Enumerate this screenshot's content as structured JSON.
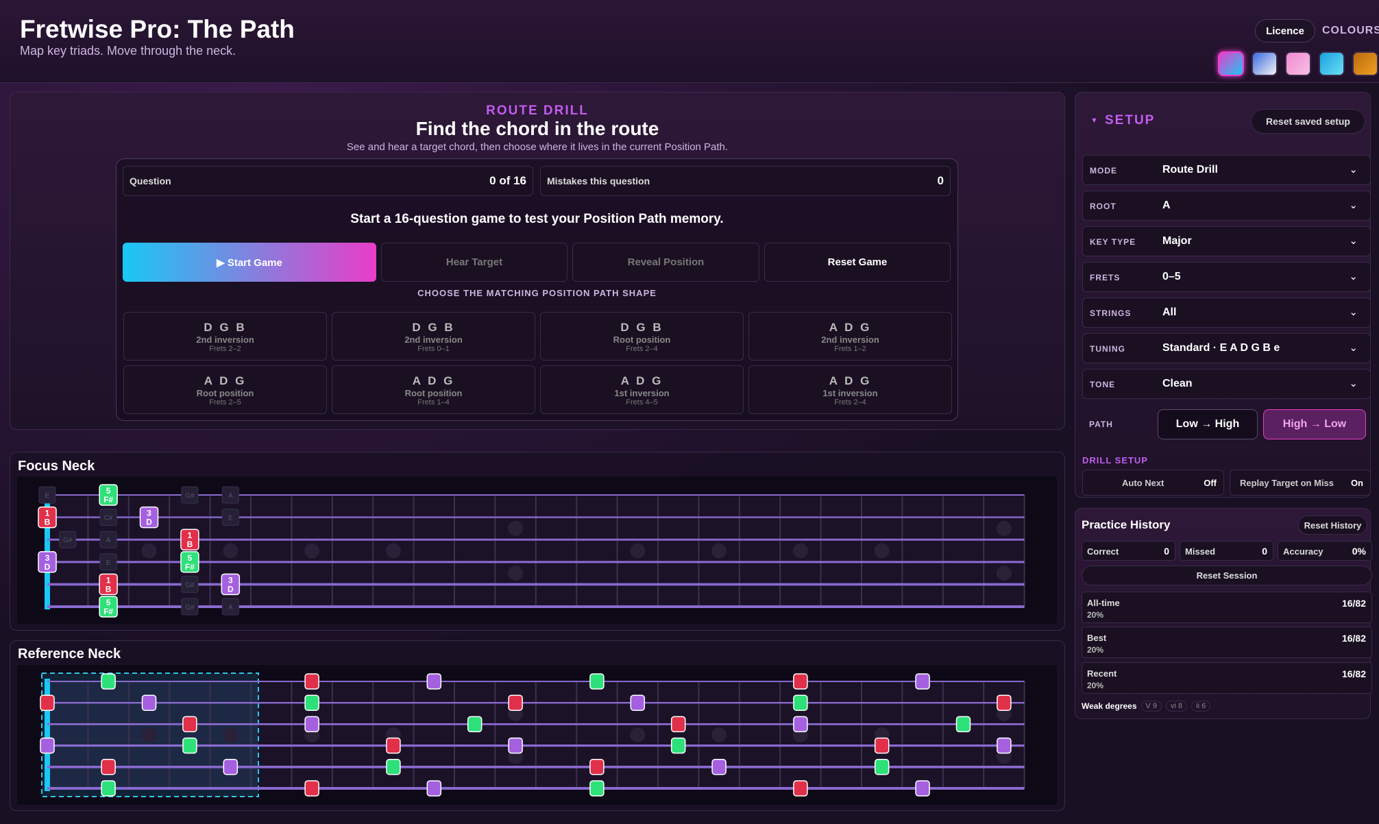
{
  "header": {
    "title": "Fretwise Pro: The Path",
    "subtitle": "Map key triads. Move through the neck.",
    "licence_label": "Licence",
    "colours_label": "COLOURS",
    "swatches": [
      {
        "name": "neon",
        "from": "#e93dc8",
        "to": "#19c8f5"
      },
      {
        "name": "electric",
        "from": "#3a6ae0",
        "to": "#f4f4f4"
      },
      {
        "name": "rose",
        "from": "#f08ad0",
        "to": "#f8c0e4"
      },
      {
        "name": "ice",
        "from": "#1aa0e0",
        "to": "#6ae0f4"
      },
      {
        "name": "amber",
        "from": "#b86a10",
        "to": "#f0a020"
      }
    ]
  },
  "drill": {
    "eyebrow": "ROUTE DRILL",
    "title": "Find the chord in the route",
    "description": "See and hear a target chord, then choose where it lives in the current Position Path.",
    "question_label": "Question",
    "question_value": "0 of 16",
    "mistakes_label": "Mistakes this question",
    "mistakes_value": "0",
    "prompt": "Start a 16-question game to test your Position Path memory.",
    "buttons": {
      "start": "▶ Start Game",
      "hear": "Hear Target",
      "reveal": "Reveal Position",
      "reset": "Reset Game"
    },
    "choose_label": "CHOOSE THE MATCHING POSITION PATH SHAPE",
    "options": [
      {
        "notes": "D G B",
        "inversion": "2nd inversion",
        "frets": "Frets 2–2"
      },
      {
        "notes": "D G B",
        "inversion": "2nd inversion",
        "frets": "Frets 0–1"
      },
      {
        "notes": "D G B",
        "inversion": "Root position",
        "frets": "Frets 2–4"
      },
      {
        "notes": "A D G",
        "inversion": "2nd inversion",
        "frets": "Frets 1–2"
      },
      {
        "notes": "A D G",
        "inversion": "Root position",
        "frets": "Frets 2–5"
      },
      {
        "notes": "A D G",
        "inversion": "Root position",
        "frets": "Frets 1–4"
      },
      {
        "notes": "A D G",
        "inversion": "1st inversion",
        "frets": "Frets 4–5"
      },
      {
        "notes": "A D G",
        "inversion": "1st inversion",
        "frets": "Frets 2–4"
      }
    ]
  },
  "focus_neck": {
    "title": "Focus Neck"
  },
  "reference_neck": {
    "title": "Reference Neck"
  },
  "setup": {
    "title": "SETUP",
    "reset_label": "Reset saved setup",
    "fields": [
      {
        "key": "MODE",
        "value": "Route Drill"
      },
      {
        "key": "ROOT",
        "value": "A"
      },
      {
        "key": "KEY TYPE",
        "value": "Major"
      },
      {
        "key": "FRETS",
        "value": "0–5"
      },
      {
        "key": "STRINGS",
        "value": "All"
      },
      {
        "key": "TUNING",
        "value": "Standard · E A D G B e"
      },
      {
        "key": "TONE",
        "value": "Clean"
      }
    ],
    "path_label": "PATH",
    "path_low_high": "Low → High",
    "path_high_low": "High → Low",
    "drill_setup_label": "DRILL SETUP",
    "auto_next_label": "Auto Next",
    "auto_next_state": "Off",
    "replay_label": "Replay Target on Miss",
    "replay_state": "On"
  },
  "history": {
    "title": "Practice History",
    "reset_label": "Reset History",
    "correct_label": "Correct",
    "correct_value": "0",
    "missed_label": "Missed",
    "missed_value": "0",
    "accuracy_label": "Accuracy",
    "accuracy_value": "0%",
    "reset_session_label": "Reset Session",
    "rows": [
      {
        "label": "All-time",
        "pct": "20%",
        "value": "16/82"
      },
      {
        "label": "Best",
        "pct": "20%",
        "value": "16/82"
      },
      {
        "label": "Recent",
        "pct": "20%",
        "value": "16/82"
      }
    ],
    "weak_label": "Weak degrees",
    "weak": [
      "V 9",
      "vi 8",
      "ii 6"
    ]
  },
  "colors": {
    "root": "#e0304a",
    "third": "#a560e0",
    "fifth": "#2ee07a",
    "accent": "#c35cf0",
    "string": "#8a6ad0"
  },
  "focus_markers": [
    {
      "string": 1,
      "fret": 2,
      "degree": "5",
      "note": "F#",
      "kind": "fifth"
    },
    {
      "string": 2,
      "fret": 0,
      "degree": "1",
      "note": "B",
      "kind": "root"
    },
    {
      "string": 2,
      "fret": 3,
      "degree": "3",
      "note": "D",
      "kind": "third"
    },
    {
      "string": 3,
      "fret": 4,
      "degree": "1",
      "note": "B",
      "kind": "root"
    },
    {
      "string": 4,
      "fret": 0,
      "degree": "3",
      "note": "D",
      "kind": "third"
    },
    {
      "string": 4,
      "fret": 4,
      "degree": "5",
      "note": "F#",
      "kind": "fifth"
    },
    {
      "string": 5,
      "fret": 2,
      "degree": "1",
      "note": "B",
      "kind": "root"
    },
    {
      "string": 5,
      "fret": 5,
      "degree": "3",
      "note": "D",
      "kind": "third"
    },
    {
      "string": 6,
      "fret": 2,
      "degree": "5",
      "note": "F#",
      "kind": "fifth"
    }
  ],
  "focus_ghosts": [
    {
      "string": 1,
      "fret": 0,
      "note": "E"
    },
    {
      "string": 1,
      "fret": 4,
      "note": "G#"
    },
    {
      "string": 1,
      "fret": 5,
      "note": "A"
    },
    {
      "string": 2,
      "fret": 2,
      "note": "C#"
    },
    {
      "string": 2,
      "fret": 5,
      "note": "E"
    },
    {
      "string": 3,
      "fret": 1,
      "note": "G#"
    },
    {
      "string": 3,
      "fret": 2,
      "note": "A"
    },
    {
      "string": 4,
      "fret": 2,
      "note": "E"
    },
    {
      "string": 5,
      "fret": 4,
      "note": "G#"
    },
    {
      "string": 6,
      "fret": 4,
      "note": "G#"
    },
    {
      "string": 6,
      "fret": 5,
      "note": "A"
    }
  ],
  "reference_markers": [
    {
      "string": 1,
      "fret": 2,
      "kind": "fifth"
    },
    {
      "string": 1,
      "fret": 7,
      "kind": "root"
    },
    {
      "string": 1,
      "fret": 10,
      "kind": "third"
    },
    {
      "string": 1,
      "fret": 14,
      "kind": "fifth"
    },
    {
      "string": 1,
      "fret": 19,
      "kind": "root"
    },
    {
      "string": 1,
      "fret": 22,
      "kind": "third"
    },
    {
      "string": 2,
      "fret": 0,
      "kind": "root"
    },
    {
      "string": 2,
      "fret": 3,
      "kind": "third"
    },
    {
      "string": 2,
      "fret": 7,
      "kind": "fifth"
    },
    {
      "string": 2,
      "fret": 12,
      "kind": "root"
    },
    {
      "string": 2,
      "fret": 15,
      "kind": "third"
    },
    {
      "string": 2,
      "fret": 19,
      "kind": "fifth"
    },
    {
      "string": 2,
      "fret": 24,
      "kind": "root"
    },
    {
      "string": 3,
      "fret": 4,
      "kind": "root"
    },
    {
      "string": 3,
      "fret": 7,
      "kind": "third"
    },
    {
      "string": 3,
      "fret": 11,
      "kind": "fifth"
    },
    {
      "string": 3,
      "fret": 16,
      "kind": "root"
    },
    {
      "string": 3,
      "fret": 19,
      "kind": "third"
    },
    {
      "string": 3,
      "fret": 23,
      "kind": "fifth"
    },
    {
      "string": 4,
      "fret": 0,
      "kind": "third"
    },
    {
      "string": 4,
      "fret": 4,
      "kind": "fifth"
    },
    {
      "string": 4,
      "fret": 9,
      "kind": "root"
    },
    {
      "string": 4,
      "fret": 12,
      "kind": "third"
    },
    {
      "string": 4,
      "fret": 16,
      "kind": "fifth"
    },
    {
      "string": 4,
      "fret": 21,
      "kind": "root"
    },
    {
      "string": 4,
      "fret": 24,
      "kind": "third"
    },
    {
      "string": 5,
      "fret": 2,
      "kind": "root"
    },
    {
      "string": 5,
      "fret": 5,
      "kind": "third"
    },
    {
      "string": 5,
      "fret": 9,
      "kind": "fifth"
    },
    {
      "string": 5,
      "fret": 14,
      "kind": "root"
    },
    {
      "string": 5,
      "fret": 17,
      "kind": "third"
    },
    {
      "string": 5,
      "fret": 21,
      "kind": "fifth"
    },
    {
      "string": 6,
      "fret": 2,
      "kind": "fifth"
    },
    {
      "string": 6,
      "fret": 7,
      "kind": "root"
    },
    {
      "string": 6,
      "fret": 10,
      "kind": "third"
    },
    {
      "string": 6,
      "fret": 14,
      "kind": "fifth"
    },
    {
      "string": 6,
      "fret": 19,
      "kind": "root"
    },
    {
      "string": 6,
      "fret": 22,
      "kind": "third"
    }
  ]
}
